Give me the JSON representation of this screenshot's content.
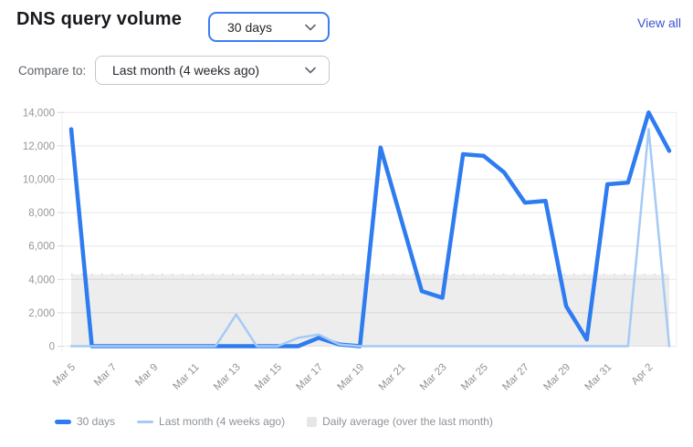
{
  "header": {
    "title": "DNS query volume",
    "range_select": {
      "value": "30 days"
    },
    "view_all_label": "View all",
    "compare_label": "Compare to:",
    "compare_select": {
      "value": "Last month (4 weeks ago)"
    }
  },
  "chart_data": {
    "type": "line",
    "title": "DNS query volume",
    "xlabel": "",
    "ylabel": "",
    "ylim": [
      0,
      14000
    ],
    "ytick_step": 2000,
    "grid": true,
    "x_tick_every": 2,
    "x": [
      "Mar 5",
      "Mar 6",
      "Mar 7",
      "Mar 8",
      "Mar 9",
      "Mar 10",
      "Mar 11",
      "Mar 12",
      "Mar 13",
      "Mar 14",
      "Mar 15",
      "Mar 16",
      "Mar 17",
      "Mar 18",
      "Mar 19",
      "Mar 20",
      "Mar 21",
      "Mar 22",
      "Mar 23",
      "Mar 24",
      "Mar 25",
      "Mar 26",
      "Mar 27",
      "Mar 28",
      "Mar 29",
      "Mar 30",
      "Mar 31",
      "Apr 1",
      "Apr 2",
      "Apr 3"
    ],
    "series": [
      {
        "name": "30 days",
        "color": "#2e7cf0",
        "stroke_width": 4.5,
        "values": [
          13000,
          0,
          0,
          0,
          0,
          0,
          0,
          0,
          0,
          0,
          0,
          0,
          500,
          100,
          0,
          11900,
          7600,
          3300,
          2900,
          11500,
          11400,
          10400,
          8600,
          8700,
          2400,
          400,
          9700,
          9800,
          14000,
          11700
        ]
      },
      {
        "name": "Last month (4 weeks ago)",
        "color": "#a5caf5",
        "stroke_width": 2.5,
        "values": [
          0,
          0,
          0,
          0,
          0,
          0,
          0,
          0,
          1900,
          0,
          0,
          500,
          700,
          100,
          0,
          0,
          0,
          0,
          0,
          0,
          0,
          0,
          0,
          0,
          0,
          0,
          0,
          0,
          13000,
          0
        ]
      }
    ],
    "band": {
      "name": "Daily average (over the last month)",
      "value": 4300,
      "fill": "rgba(0,0,0,0.07)",
      "border_color": "#c4c4c4"
    },
    "colors": {
      "gridline": "#e8e8e8",
      "axis": "#ececec",
      "accent_blue": "#2e7cf0",
      "compare_blue": "#a5caf5",
      "link_blue": "#3b55d1"
    }
  },
  "legend": {
    "items": [
      {
        "label": "30 days",
        "swatch": "line-thick",
        "color": "#2e7cf0"
      },
      {
        "label": "Last month (4 weeks ago)",
        "swatch": "line-thin",
        "color": "#a5caf5"
      },
      {
        "label": "Daily average (over the last month)",
        "swatch": "square",
        "color": "#e4e6e8"
      }
    ]
  }
}
